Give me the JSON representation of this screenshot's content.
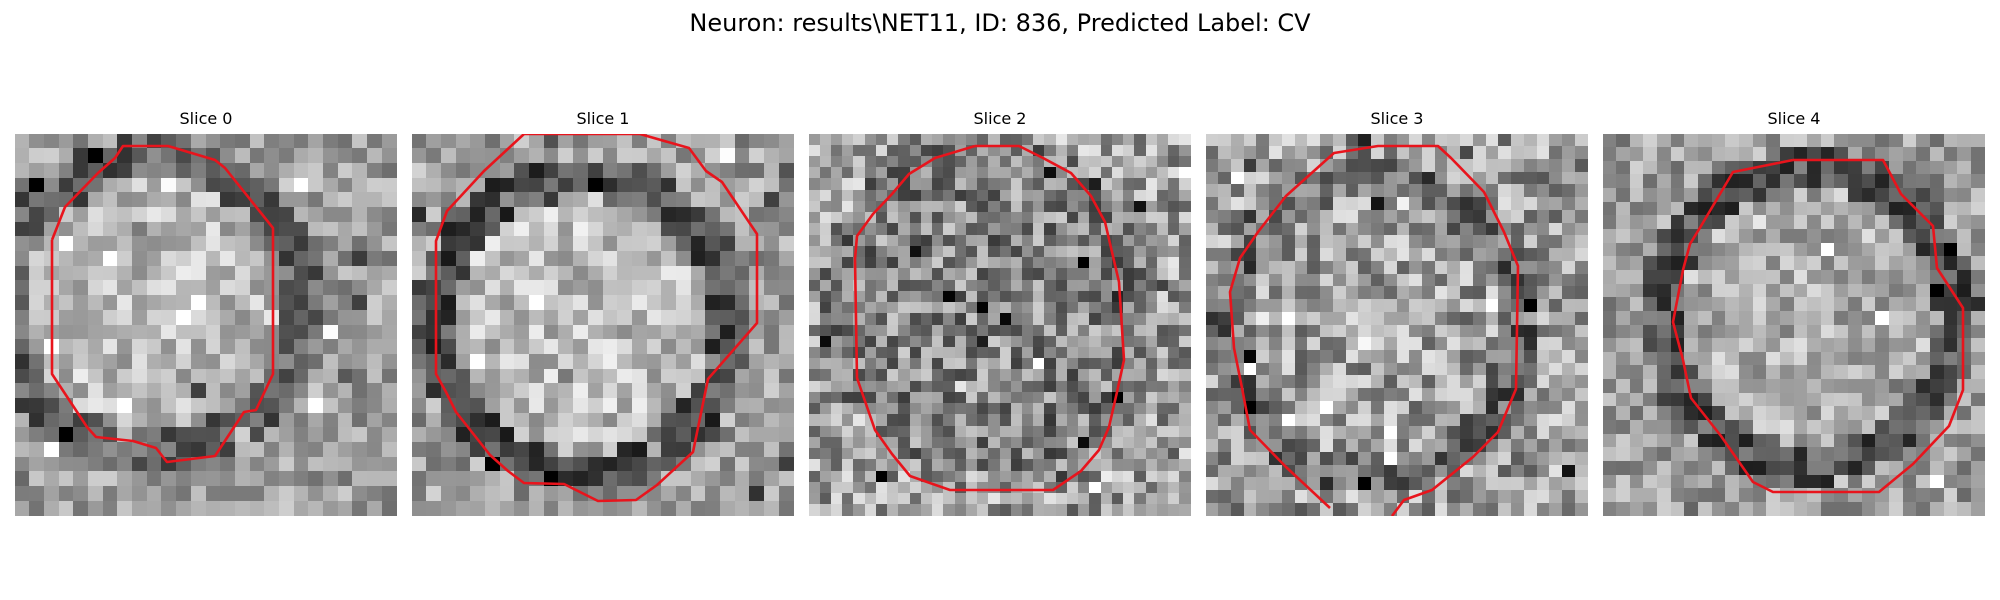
{
  "figure": {
    "title": "Neuron: results\\NET11, ID: 836, Predicted Label: CV",
    "contour_color": "#e8141c",
    "colormap": "gray"
  },
  "slices": [
    {
      "label": "Slice 0",
      "grid": 26,
      "center_tone": 0.72,
      "ring_tone": 0.38,
      "noise": 0.12
    },
    {
      "label": "Slice 1",
      "grid": 26,
      "center_tone": 0.74,
      "ring_tone": 0.3,
      "noise": 0.13
    },
    {
      "label": "Slice 2",
      "grid": 34,
      "center_tone": 0.52,
      "ring_tone": 0.5,
      "noise": 0.18
    },
    {
      "label": "Slice 3",
      "grid": 30,
      "center_tone": 0.62,
      "ring_tone": 0.42,
      "noise": 0.17
    },
    {
      "label": "Slice 4",
      "grid": 28,
      "center_tone": 0.68,
      "ring_tone": 0.32,
      "noise": 0.13
    }
  ]
}
